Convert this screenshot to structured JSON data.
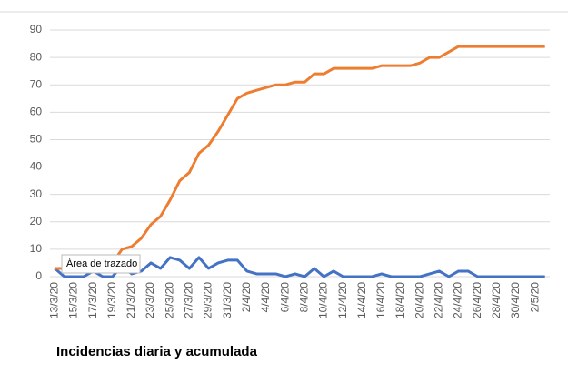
{
  "chart_data": {
    "type": "line",
    "title": "Incidencias diaria y acumulada",
    "annotation": "Área de trazado",
    "categories": [
      "13/3/20",
      null,
      "15/3/20",
      null,
      "17/3/20",
      null,
      "19/3/20",
      null,
      "21/3/20",
      null,
      "23/3/20",
      null,
      "25/3/20",
      null,
      "27/3/20",
      null,
      "29/3/20",
      null,
      "31/3/20",
      null,
      "2/4/20",
      null,
      "4/4/20",
      null,
      "6/4/20",
      null,
      "8/4/20",
      null,
      "10/4/20",
      null,
      "12/4/20",
      null,
      "14/4/20",
      null,
      "16/4/20",
      null,
      "18/4/20",
      null,
      "20/4/20",
      null,
      "22/4/20",
      null,
      "24/4/20",
      null,
      "26/4/20",
      null,
      "28/4/20",
      null,
      "30/4/20",
      null,
      "2/5/20",
      null
    ],
    "series": [
      {
        "color": "#4472c4",
        "values": [
          3,
          0,
          0,
          0,
          2,
          0,
          0,
          4,
          1,
          2,
          5,
          3,
          7,
          6,
          3,
          7,
          3,
          5,
          6,
          6,
          2,
          1,
          1,
          1,
          0,
          1,
          0,
          3,
          0,
          2,
          0,
          0,
          0,
          0,
          1,
          0,
          0,
          0,
          0,
          1,
          2,
          0,
          2,
          2,
          0,
          0,
          0,
          0,
          0,
          0,
          0,
          0
        ]
      },
      {
        "color": "#ed7d31",
        "values": [
          3,
          3,
          3,
          3,
          5,
          5,
          5,
          10,
          11,
          14,
          19,
          22,
          28,
          35,
          38,
          45,
          48,
          53,
          59,
          65,
          67,
          68,
          69,
          70,
          70,
          71,
          71,
          74,
          74,
          76,
          76,
          76,
          76,
          76,
          77,
          77,
          77,
          77,
          78,
          80,
          80,
          82,
          84,
          84,
          84,
          84,
          84,
          84,
          84,
          84,
          84,
          84
        ]
      }
    ],
    "ylim": [
      0,
      90
    ],
    "yticks": [
      0,
      10,
      20,
      30,
      40,
      50,
      60,
      70,
      80,
      90
    ],
    "grid": true
  }
}
